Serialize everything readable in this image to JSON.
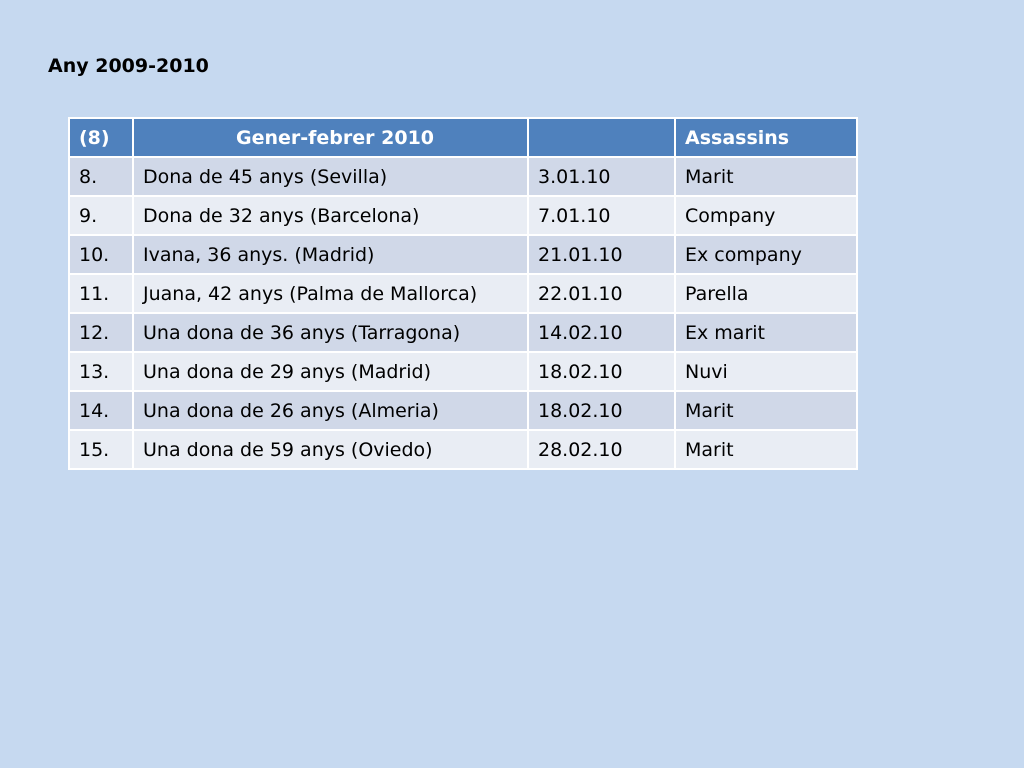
{
  "title": "Any 2009-2010",
  "table": {
    "headers": [
      "(8)",
      "Gener-febrer 2010",
      "",
      "Assassins"
    ],
    "rows": [
      {
        "num": "8.",
        "victim": "Dona de 45 anys (Sevilla)",
        "date": " 3.01.10",
        "killer": "Marit"
      },
      {
        "num": "9.",
        "victim": "Dona de 32 anys (Barcelona)",
        "date": " 7.01.10",
        "killer": "Company"
      },
      {
        "num": "10.",
        "victim": "Ivana, 36 anys. (Madrid)",
        "date": "21.01.10",
        "killer": "Ex company"
      },
      {
        "num": "11.",
        "victim": "Juana, 42 anys (Palma de Mallorca)",
        "date": "22.01.10",
        "killer": "Parella"
      },
      {
        "num": "12.",
        "victim": "Una dona de 36 anys (Tarragona)",
        "date": "14.02.10",
        "killer": "Ex marit"
      },
      {
        "num": "13.",
        "victim": "Una dona de 29 anys (Madrid)",
        "date": "18.02.10",
        "killer": "Nuvi"
      },
      {
        "num": "14.",
        "victim": "Una dona de 26 anys (Almeria)",
        "date": "18.02.10",
        "killer": "Marit"
      },
      {
        "num": "15.",
        "victim": "Una dona de 59 anys (Oviedo)",
        "date": "28.02.10",
        "killer": "Marit"
      }
    ]
  },
  "colors": {
    "background": "#c6d9f0",
    "header": "#4f81bd",
    "row_odd": "#d0d8e8",
    "row_even": "#e9edf4"
  }
}
